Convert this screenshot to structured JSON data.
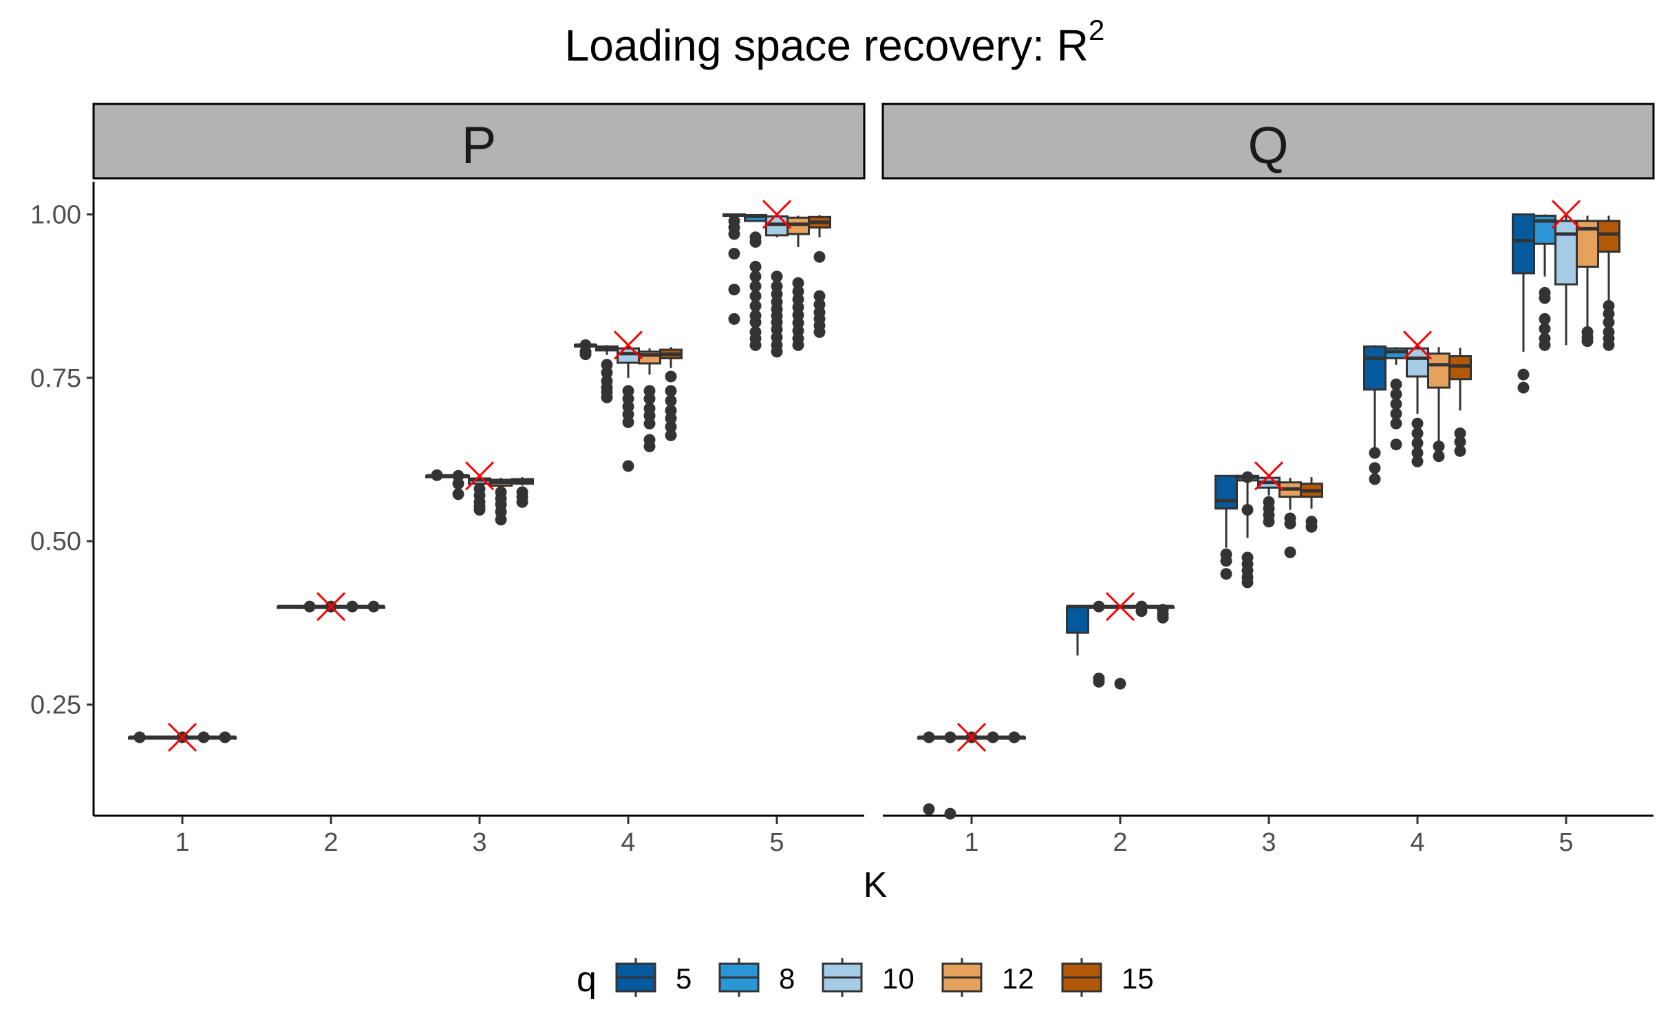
{
  "chart_data": {
    "type": "box",
    "title": "Loading space recovery: R",
    "title_superscript": "2",
    "xlabel": "K",
    "ylabel": "",
    "ylim": [
      0.08,
      1.05
    ],
    "yticks": [
      "0.25",
      "0.50",
      "0.75",
      "1.00"
    ],
    "ytick_values": [
      0.25,
      0.5,
      0.75,
      1.0
    ],
    "categories": [
      "1",
      "2",
      "3",
      "4",
      "5"
    ],
    "grid": false,
    "legend": {
      "title": "q",
      "placement": "bottom",
      "entries": [
        "5",
        "8",
        "10",
        "12",
        "15"
      ],
      "colors": [
        "#045a9c",
        "#2a96d6",
        "#a6cbe6",
        "#e6a25c",
        "#b35806"
      ]
    },
    "reference": {
      "marker": "x",
      "color": "#ff0000",
      "label": "",
      "values": [
        0.2,
        0.4,
        0.6,
        0.8,
        1.0
      ]
    },
    "panels": [
      {
        "name": "P",
        "groups": [
          {
            "K": "1",
            "boxes": [
              {
                "q": "5",
                "min": 0.2,
                "q1": 0.2,
                "median": 0.2,
                "q3": 0.2,
                "max": 0.2,
                "outliers": [
                  0.2
                ]
              },
              {
                "q": "8",
                "min": 0.2,
                "q1": 0.2,
                "median": 0.2,
                "q3": 0.2,
                "max": 0.2,
                "outliers": []
              },
              {
                "q": "10",
                "min": 0.2,
                "q1": 0.2,
                "median": 0.2,
                "q3": 0.2,
                "max": 0.2,
                "outliers": [
                  0.2
                ]
              },
              {
                "q": "12",
                "min": 0.2,
                "q1": 0.2,
                "median": 0.2,
                "q3": 0.2,
                "max": 0.2,
                "outliers": [
                  0.2
                ]
              },
              {
                "q": "15",
                "min": 0.2,
                "q1": 0.2,
                "median": 0.2,
                "q3": 0.2,
                "max": 0.2,
                "outliers": [
                  0.2
                ]
              }
            ]
          },
          {
            "K": "2",
            "boxes": [
              {
                "q": "5",
                "min": 0.4,
                "q1": 0.4,
                "median": 0.4,
                "q3": 0.4,
                "max": 0.4,
                "outliers": []
              },
              {
                "q": "8",
                "min": 0.4,
                "q1": 0.4,
                "median": 0.4,
                "q3": 0.4,
                "max": 0.4,
                "outliers": [
                  0.4
                ]
              },
              {
                "q": "10",
                "min": 0.4,
                "q1": 0.4,
                "median": 0.4,
                "q3": 0.4,
                "max": 0.4,
                "outliers": [
                  0.4
                ]
              },
              {
                "q": "12",
                "min": 0.4,
                "q1": 0.4,
                "median": 0.4,
                "q3": 0.4,
                "max": 0.4,
                "outliers": [
                  0.4
                ]
              },
              {
                "q": "15",
                "min": 0.4,
                "q1": 0.4,
                "median": 0.4,
                "q3": 0.4,
                "max": 0.4,
                "outliers": [
                  0.4
                ]
              }
            ]
          },
          {
            "K": "3",
            "boxes": [
              {
                "q": "5",
                "min": 0.599,
                "q1": 0.6,
                "median": 0.6,
                "q3": 0.6,
                "max": 0.6,
                "outliers": [
                  0.601
                ]
              },
              {
                "q": "8",
                "min": 0.595,
                "q1": 0.598,
                "median": 0.6,
                "q3": 0.6,
                "max": 0.6,
                "outliers": [
                  0.6,
                  0.588,
                  0.572
                ]
              },
              {
                "q": "10",
                "min": 0.583,
                "q1": 0.588,
                "median": 0.594,
                "q3": 0.596,
                "max": 0.598,
                "outliers": [
                  0.58,
                  0.57,
                  0.56,
                  0.553,
                  0.548
                ]
              },
              {
                "q": "12",
                "min": 0.58,
                "q1": 0.585,
                "median": 0.59,
                "q3": 0.594,
                "max": 0.597,
                "outliers": [
                  0.575,
                  0.565,
                  0.556,
                  0.545,
                  0.533
                ]
              },
              {
                "q": "15",
                "min": 0.585,
                "q1": 0.588,
                "median": 0.592,
                "q3": 0.595,
                "max": 0.598,
                "outliers": [
                  0.575,
                  0.568,
                  0.56
                ]
              }
            ]
          },
          {
            "K": "4",
            "boxes": [
              {
                "q": "5",
                "min": 0.797,
                "q1": 0.798,
                "median": 0.8,
                "q3": 0.8,
                "max": 0.801,
                "outliers": [
                  0.8,
                  0.79,
                  0.786
                ]
              },
              {
                "q": "8",
                "min": 0.785,
                "q1": 0.792,
                "median": 0.796,
                "q3": 0.798,
                "max": 0.8,
                "outliers": [
                  0.77,
                  0.758,
                  0.745,
                  0.735,
                  0.728,
                  0.72
                ]
              },
              {
                "q": "10",
                "min": 0.75,
                "q1": 0.773,
                "median": 0.787,
                "q3": 0.795,
                "max": 0.799,
                "outliers": [
                  0.73,
                  0.718,
                  0.706,
                  0.694,
                  0.682,
                  0.615
                ]
              },
              {
                "q": "12",
                "min": 0.755,
                "q1": 0.772,
                "median": 0.785,
                "q3": 0.79,
                "max": 0.795,
                "outliers": [
                  0.73,
                  0.718,
                  0.703,
                  0.692,
                  0.68,
                  0.655,
                  0.645
                ]
              },
              {
                "q": "15",
                "min": 0.765,
                "q1": 0.78,
                "median": 0.786,
                "q3": 0.793,
                "max": 0.797,
                "outliers": [
                  0.752,
                  0.73,
                  0.715,
                  0.7,
                  0.688,
                  0.675,
                  0.662
                ]
              }
            ]
          },
          {
            "K": "5",
            "boxes": [
              {
                "q": "5",
                "min": 0.997,
                "q1": 0.998,
                "median": 0.999,
                "q3": 1.0,
                "max": 1.0,
                "outliers": [
                  0.99,
                  0.98,
                  0.97,
                  0.94,
                  0.885,
                  0.84
                ]
              },
              {
                "q": "8",
                "min": 0.99,
                "q1": 0.99,
                "median": 0.997,
                "q3": 0.999,
                "max": 1.0,
                "outliers": [
                  0.965,
                  0.958,
                  0.92,
                  0.905,
                  0.89,
                  0.875,
                  0.86,
                  0.845,
                  0.835,
                  0.82,
                  0.81,
                  0.8
                ]
              },
              {
                "q": "10",
                "min": 0.965,
                "q1": 0.968,
                "median": 0.985,
                "q3": 0.997,
                "max": 0.999,
                "outliers": [
                  0.905,
                  0.89,
                  0.878,
                  0.866,
                  0.855,
                  0.845,
                  0.835,
                  0.824,
                  0.812,
                  0.8,
                  0.79
                ]
              },
              {
                "q": "12",
                "min": 0.95,
                "q1": 0.97,
                "median": 0.985,
                "q3": 0.995,
                "max": 0.998,
                "outliers": [
                  0.895,
                  0.882,
                  0.87,
                  0.858,
                  0.846,
                  0.834,
                  0.822,
                  0.81,
                  0.8
                ]
              },
              {
                "q": "15",
                "min": 0.965,
                "q1": 0.98,
                "median": 0.988,
                "q3": 0.996,
                "max": 0.999,
                "outliers": [
                  0.935,
                  0.875,
                  0.862,
                  0.85,
                  0.84,
                  0.83,
                  0.82
                ]
              }
            ]
          }
        ]
      },
      {
        "name": "Q",
        "groups": [
          {
            "K": "1",
            "boxes": [
              {
                "q": "5",
                "min": 0.2,
                "q1": 0.2,
                "median": 0.2,
                "q3": 0.2,
                "max": 0.2,
                "outliers": [
                  0.2,
                  0.09
                ]
              },
              {
                "q": "8",
                "min": 0.2,
                "q1": 0.2,
                "median": 0.2,
                "q3": 0.2,
                "max": 0.2,
                "outliers": [
                  0.2,
                  0.083
                ]
              },
              {
                "q": "10",
                "min": 0.2,
                "q1": 0.2,
                "median": 0.2,
                "q3": 0.2,
                "max": 0.2,
                "outliers": [
                  0.2
                ]
              },
              {
                "q": "12",
                "min": 0.2,
                "q1": 0.2,
                "median": 0.2,
                "q3": 0.2,
                "max": 0.2,
                "outliers": [
                  0.2
                ]
              },
              {
                "q": "15",
                "min": 0.2,
                "q1": 0.2,
                "median": 0.2,
                "q3": 0.2,
                "max": 0.2,
                "outliers": [
                  0.2
                ]
              }
            ]
          },
          {
            "K": "2",
            "boxes": [
              {
                "q": "5",
                "min": 0.325,
                "q1": 0.36,
                "median": 0.4,
                "q3": 0.4,
                "max": 0.4,
                "outliers": []
              },
              {
                "q": "8",
                "min": 0.398,
                "q1": 0.399,
                "median": 0.4,
                "q3": 0.4,
                "max": 0.4,
                "outliers": [
                  0.4,
                  0.29,
                  0.285
                ]
              },
              {
                "q": "10",
                "min": 0.398,
                "q1": 0.399,
                "median": 0.4,
                "q3": 0.4,
                "max": 0.4,
                "outliers": [
                  0.282
                ]
              },
              {
                "q": "12",
                "min": 0.398,
                "q1": 0.399,
                "median": 0.4,
                "q3": 0.4,
                "max": 0.4,
                "outliers": [
                  0.4,
                  0.393
                ]
              },
              {
                "q": "15",
                "min": 0.398,
                "q1": 0.399,
                "median": 0.4,
                "q3": 0.4,
                "max": 0.4,
                "outliers": [
                  0.395,
                  0.388,
                  0.383
                ]
              }
            ]
          },
          {
            "K": "3",
            "boxes": [
              {
                "q": "5",
                "min": 0.49,
                "q1": 0.55,
                "median": 0.562,
                "q3": 0.6,
                "max": 0.6,
                "outliers": [
                  0.48,
                  0.47,
                  0.45
                ]
              },
              {
                "q": "8",
                "min": 0.505,
                "q1": 0.593,
                "median": 0.598,
                "q3": 0.6,
                "max": 0.6,
                "outliers": [
                  0.598,
                  0.548,
                  0.475,
                  0.465,
                  0.455,
                  0.445,
                  0.437
                ]
              },
              {
                "q": "10",
                "min": 0.57,
                "q1": 0.582,
                "median": 0.59,
                "q3": 0.597,
                "max": 0.6,
                "outliers": [
                  0.56,
                  0.55,
                  0.54,
                  0.53
                ]
              },
              {
                "q": "12",
                "min": 0.548,
                "q1": 0.568,
                "median": 0.58,
                "q3": 0.59,
                "max": 0.597,
                "outliers": [
                  0.535,
                  0.527,
                  0.483
                ]
              },
              {
                "q": "15",
                "min": 0.55,
                "q1": 0.568,
                "median": 0.577,
                "q3": 0.588,
                "max": 0.598,
                "outliers": [
                  0.53,
                  0.522
                ]
              }
            ]
          },
          {
            "K": "4",
            "boxes": [
              {
                "q": "5",
                "min": 0.64,
                "q1": 0.732,
                "median": 0.78,
                "q3": 0.798,
                "max": 0.8,
                "outliers": [
                  0.635,
                  0.612,
                  0.595
                ]
              },
              {
                "q": "8",
                "min": 0.77,
                "q1": 0.78,
                "median": 0.79,
                "q3": 0.795,
                "max": 0.797,
                "outliers": [
                  0.74,
                  0.725,
                  0.71,
                  0.695,
                  0.68,
                  0.648
                ]
              },
              {
                "q": "10",
                "min": 0.695,
                "q1": 0.752,
                "median": 0.78,
                "q3": 0.795,
                "max": 0.799,
                "outliers": [
                  0.68,
                  0.665,
                  0.65,
                  0.635,
                  0.622
                ]
              },
              {
                "q": "12",
                "min": 0.65,
                "q1": 0.735,
                "median": 0.77,
                "q3": 0.787,
                "max": 0.797,
                "outliers": [
                  0.645,
                  0.63
                ]
              },
              {
                "q": "15",
                "min": 0.7,
                "q1": 0.748,
                "median": 0.768,
                "q3": 0.783,
                "max": 0.796,
                "outliers": [
                  0.665,
                  0.652,
                  0.638
                ]
              }
            ]
          },
          {
            "K": "5",
            "boxes": [
              {
                "q": "5",
                "min": 0.79,
                "q1": 0.91,
                "median": 0.96,
                "q3": 1.0,
                "max": 1.0,
                "outliers": [
                  0.755,
                  0.735
                ]
              },
              {
                "q": "8",
                "min": 0.905,
                "q1": 0.955,
                "median": 0.99,
                "q3": 0.998,
                "max": 1.0,
                "outliers": [
                  0.88,
                  0.872,
                  0.84,
                  0.825,
                  0.81,
                  0.8
                ]
              },
              {
                "q": "10",
                "min": 0.8,
                "q1": 0.893,
                "median": 0.97,
                "q3": 0.99,
                "max": 0.999,
                "outliers": []
              },
              {
                "q": "12",
                "min": 0.815,
                "q1": 0.92,
                "median": 0.978,
                "q3": 0.99,
                "max": 0.998,
                "outliers": [
                  0.82,
                  0.812,
                  0.806
                ]
              },
              {
                "q": "15",
                "min": 0.865,
                "q1": 0.943,
                "median": 0.97,
                "q3": 0.99,
                "max": 0.998,
                "outliers": [
                  0.86,
                  0.848,
                  0.835,
                  0.82,
                  0.81,
                  0.8
                ]
              }
            ]
          }
        ]
      }
    ]
  }
}
